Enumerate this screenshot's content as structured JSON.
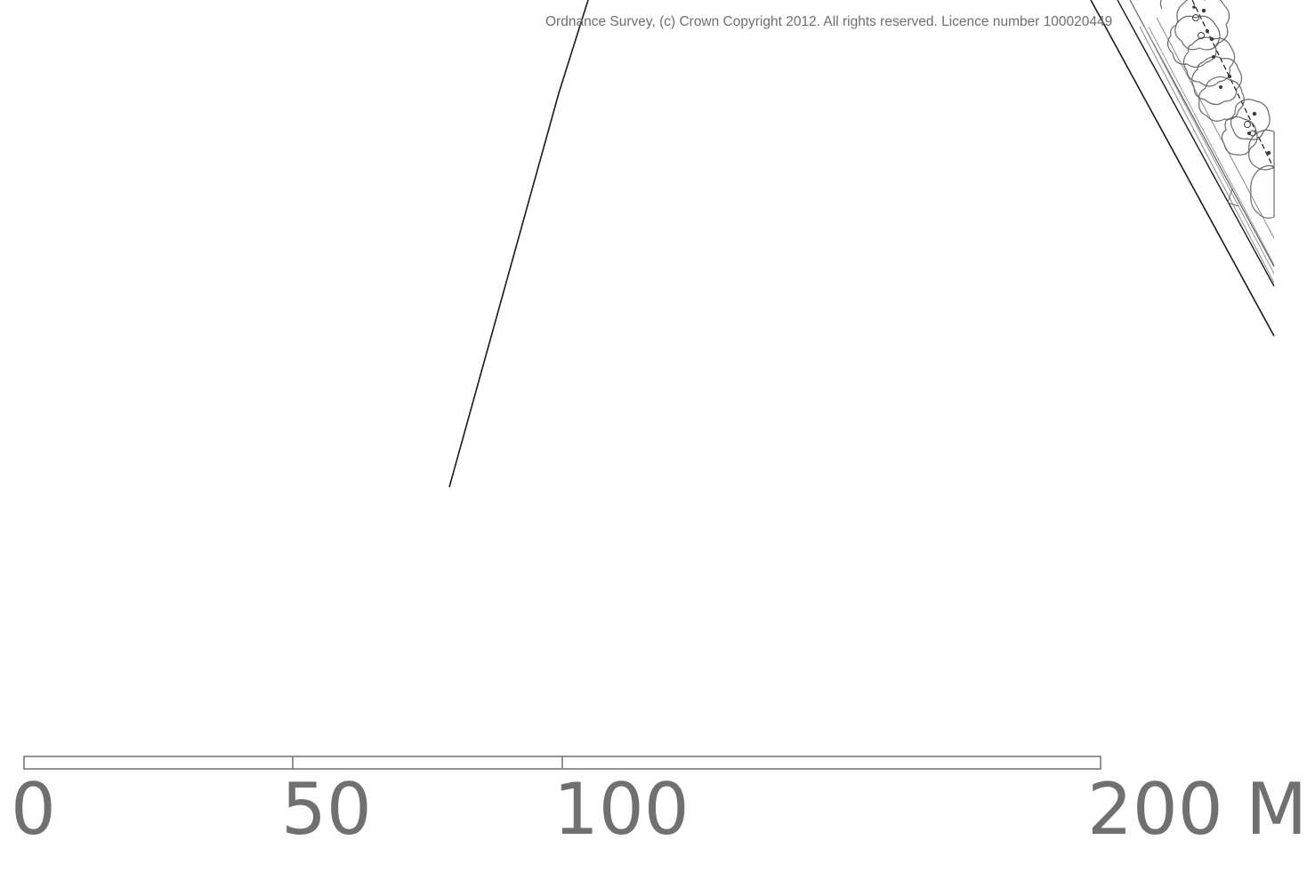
{
  "map": {
    "copyright": "Ordnance Survey, (c) Crown Copyright 2012. All rights reserved. Licence number 100020449",
    "colors": {
      "background": "#ffffff",
      "linework": "#1a1a1a",
      "feature_outline": "#6a6a6a",
      "text_grey": "#707070"
    },
    "features": [
      {
        "name": "boundary-line-left",
        "type": "line"
      },
      {
        "name": "road-edge-lines",
        "type": "line"
      },
      {
        "name": "tree-canopy-symbols",
        "type": "symbol"
      }
    ]
  },
  "scale_bar": {
    "labels": [
      "0",
      "50",
      "100",
      "200 M"
    ]
  }
}
